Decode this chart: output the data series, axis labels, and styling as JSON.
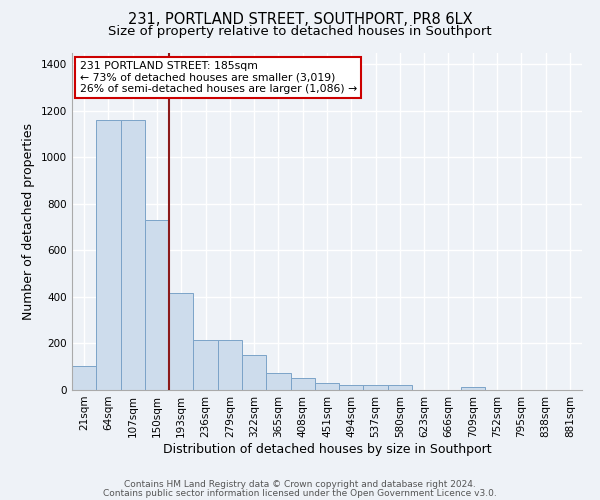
{
  "title": "231, PORTLAND STREET, SOUTHPORT, PR8 6LX",
  "subtitle": "Size of property relative to detached houses in Southport",
  "xlabel": "Distribution of detached houses by size in Southport",
  "ylabel": "Number of detached properties",
  "bar_labels": [
    "21sqm",
    "64sqm",
    "107sqm",
    "150sqm",
    "193sqm",
    "236sqm",
    "279sqm",
    "322sqm",
    "365sqm",
    "408sqm",
    "451sqm",
    "494sqm",
    "537sqm",
    "580sqm",
    "623sqm",
    "666sqm",
    "709sqm",
    "752sqm",
    "795sqm",
    "838sqm",
    "881sqm"
  ],
  "bar_values": [
    105,
    1160,
    1160,
    730,
    415,
    215,
    215,
    150,
    75,
    50,
    30,
    20,
    20,
    20,
    0,
    0,
    15,
    0,
    0,
    0,
    0
  ],
  "bar_color": "#cddcec",
  "bar_edge_color": "#7ba3c8",
  "vline_color": "#8b1a1a",
  "annotation_title": "231 PORTLAND STREET: 185sqm",
  "annotation_line1": "← 73% of detached houses are smaller (3,019)",
  "annotation_line2": "26% of semi-detached houses are larger (1,086) →",
  "annotation_box_color": "#ffffff",
  "annotation_box_edge": "#cc0000",
  "ylim": [
    0,
    1450
  ],
  "yticks": [
    0,
    200,
    400,
    600,
    800,
    1000,
    1200,
    1400
  ],
  "footer1": "Contains HM Land Registry data © Crown copyright and database right 2024.",
  "footer2": "Contains public sector information licensed under the Open Government Licence v3.0.",
  "bg_color": "#eef2f7",
  "plot_bg_color": "#eef2f7",
  "grid_color": "#ffffff",
  "title_fontsize": 10.5,
  "subtitle_fontsize": 9.5,
  "axis_label_fontsize": 9,
  "tick_fontsize": 7.5,
  "footer_fontsize": 6.5
}
